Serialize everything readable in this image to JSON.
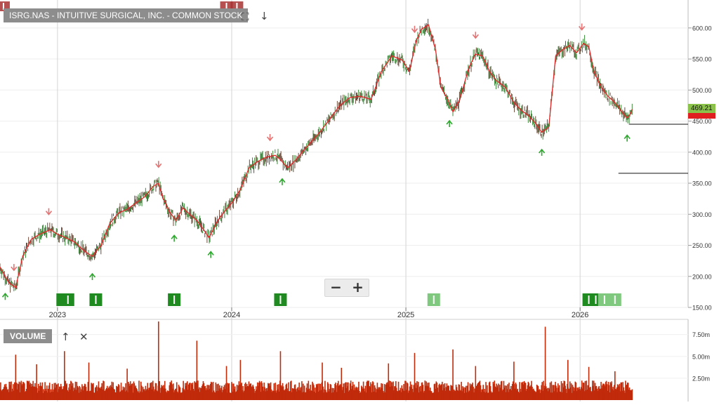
{
  "header": {
    "title": "ISRG.NAS - INTUITIVE SURGICAL, INC. - COMMON STOCK",
    "tools": [
      "fullscreen-icon",
      "download-icon"
    ]
  },
  "volume_panel": {
    "label": "VOLUME",
    "tools": [
      "move-up-icon",
      "close-icon"
    ]
  },
  "zoom": {
    "minus": "−",
    "plus": "+"
  },
  "last_price": {
    "value": "469.21",
    "color": "#8bc34a"
  },
  "second_price": {
    "value": "465.00",
    "color": "#e02020"
  },
  "colors": {
    "price_line": "#e02a2a",
    "volume": "#c12b0a",
    "buy_marker": "#2ea82e",
    "sell_marker": "#e57373",
    "signal_dark": "#1f8a1f",
    "signal_light": "#7fc97f",
    "signal_red": "#a83232"
  },
  "chart_data": [
    {
      "type": "line",
      "title": "ISRG.NAS - INTUITIVE SURGICAL, INC. - COMMON STOCK",
      "x_axis": {
        "ticks": [
          "2023",
          "2024",
          "2025",
          "2026"
        ]
      },
      "y_axis": {
        "ticks": [
          150,
          200,
          250,
          300,
          350,
          400,
          450,
          500,
          550,
          600
        ],
        "tick_labels": [
          "150.00",
          "200.00",
          "250.00",
          "300.00",
          "350.00",
          "400.00",
          "450.00",
          "500.00",
          "550.00",
          "600.00"
        ],
        "range": [
          150,
          645
        ]
      },
      "grid": true,
      "x_range": [
        2022.67,
        2026.62
      ],
      "series": [
        {
          "points": [
            [
              2022.67,
              215
            ],
            [
              2022.72,
              190
            ],
            [
              2022.76,
              182
            ],
            [
              2022.8,
              232
            ],
            [
              2022.85,
              260
            ],
            [
              2022.9,
              268
            ],
            [
              2022.96,
              275
            ],
            [
              2023.0,
              268
            ],
            [
              2023.05,
              262
            ],
            [
              2023.1,
              255
            ],
            [
              2023.15,
              242
            ],
            [
              2023.2,
              232
            ],
            [
              2023.25,
              250
            ],
            [
              2023.3,
              285
            ],
            [
              2023.35,
              302
            ],
            [
              2023.4,
              308
            ],
            [
              2023.45,
              318
            ],
            [
              2023.5,
              328
            ],
            [
              2023.55,
              345
            ],
            [
              2023.58,
              350
            ],
            [
              2023.6,
              330
            ],
            [
              2023.64,
              305
            ],
            [
              2023.68,
              290
            ],
            [
              2023.72,
              310
            ],
            [
              2023.76,
              300
            ],
            [
              2023.8,
              290
            ],
            [
              2023.84,
              275
            ],
            [
              2023.87,
              262
            ],
            [
              2023.92,
              290
            ],
            [
              2023.96,
              305
            ],
            [
              2024.0,
              318
            ],
            [
              2024.05,
              340
            ],
            [
              2024.1,
              375
            ],
            [
              2024.15,
              385
            ],
            [
              2024.2,
              392
            ],
            [
              2024.25,
              395
            ],
            [
              2024.28,
              388
            ],
            [
              2024.32,
              375
            ],
            [
              2024.36,
              385
            ],
            [
              2024.42,
              405
            ],
            [
              2024.5,
              430
            ],
            [
              2024.56,
              452
            ],
            [
              2024.62,
              475
            ],
            [
              2024.68,
              488
            ],
            [
              2024.74,
              490
            ],
            [
              2024.8,
              485
            ],
            [
              2024.86,
              530
            ],
            [
              2024.92,
              555
            ],
            [
              2024.98,
              548
            ],
            [
              2025.02,
              530
            ],
            [
              2025.06,
              580
            ],
            [
              2025.09,
              598
            ],
            [
              2025.13,
              605
            ],
            [
              2025.17,
              565
            ],
            [
              2025.2,
              505
            ],
            [
              2025.24,
              485
            ],
            [
              2025.27,
              465
            ],
            [
              2025.31,
              485
            ],
            [
              2025.36,
              535
            ],
            [
              2025.4,
              558
            ],
            [
              2025.44,
              555
            ],
            [
              2025.48,
              530
            ],
            [
              2025.52,
              515
            ],
            [
              2025.57,
              505
            ],
            [
              2025.62,
              480
            ],
            [
              2025.66,
              468
            ],
            [
              2025.7,
              460
            ],
            [
              2025.74,
              448
            ],
            [
              2025.78,
              432
            ],
            [
              2025.82,
              440
            ],
            [
              2025.86,
              555
            ],
            [
              2025.9,
              565
            ],
            [
              2025.94,
              572
            ],
            [
              2025.98,
              560
            ],
            [
              2026.02,
              575
            ],
            [
              2026.05,
              570
            ],
            [
              2026.08,
              530
            ],
            [
              2026.12,
              505
            ],
            [
              2026.16,
              490
            ],
            [
              2026.2,
              480
            ],
            [
              2026.24,
              465
            ],
            [
              2026.27,
              455
            ],
            [
              2026.29,
              462
            ],
            [
              2026.3,
              469
            ]
          ]
        }
      ],
      "sell_markers": [
        2022.75,
        2022.95,
        2023.58,
        2024.22,
        2025.05,
        2025.4,
        2026.01
      ],
      "buy_markers": [
        2022.7,
        2023.2,
        2023.67,
        2023.88,
        2024.29,
        2025.25,
        2025.78,
        2026.27
      ],
      "signal_bars": [
        {
          "x": 2023.03,
          "shade": "dark"
        },
        {
          "x": 2023.06,
          "shade": "dark"
        },
        {
          "x": 2023.22,
          "shade": "dark"
        },
        {
          "x": 2023.67,
          "shade": "dark"
        },
        {
          "x": 2024.28,
          "shade": "dark"
        },
        {
          "x": 2025.16,
          "shade": "light"
        },
        {
          "x": 2026.05,
          "shade": "dark"
        },
        {
          "x": 2026.09,
          "shade": "dark"
        },
        {
          "x": 2026.14,
          "shade": "light"
        },
        {
          "x": 2026.2,
          "shade": "light"
        }
      ],
      "top_signals": [
        {
          "x": 2022.69
        },
        {
          "x": 2023.97
        },
        {
          "x": 2024.03
        }
      ],
      "reference_lines": [
        {
          "y": 445,
          "from": 2026.28
        },
        {
          "y": 366,
          "from": 2026.22
        }
      ]
    },
    {
      "type": "bar",
      "title": "VOLUME",
      "y_axis": {
        "ticks": [
          2.5,
          5.0,
          7.5
        ],
        "tick_labels": [
          "2.50m",
          "5.00m",
          "7.50m"
        ],
        "range": [
          0,
          9.0
        ]
      },
      "grid": true,
      "baseline_volume_m": 1.6,
      "spikes": [
        [
          2022.76,
          5.2
        ],
        [
          2022.88,
          4.1
        ],
        [
          2023.04,
          5.6
        ],
        [
          2023.18,
          4.3
        ],
        [
          2023.4,
          3.6
        ],
        [
          2023.58,
          9.0
        ],
        [
          2023.8,
          6.8
        ],
        [
          2023.97,
          3.9
        ],
        [
          2024.05,
          4.6
        ],
        [
          2024.28,
          5.6
        ],
        [
          2024.52,
          4.3
        ],
        [
          2024.63,
          3.7
        ],
        [
          2024.9,
          4.2
        ],
        [
          2025.05,
          5.4
        ],
        [
          2025.27,
          5.8
        ],
        [
          2025.4,
          3.9
        ],
        [
          2025.62,
          4.4
        ],
        [
          2025.8,
          8.4
        ],
        [
          2025.93,
          4.6
        ],
        [
          2026.05,
          3.8
        ],
        [
          2026.2,
          3.3
        ]
      ],
      "x_range": [
        2022.67,
        2026.3
      ]
    }
  ]
}
